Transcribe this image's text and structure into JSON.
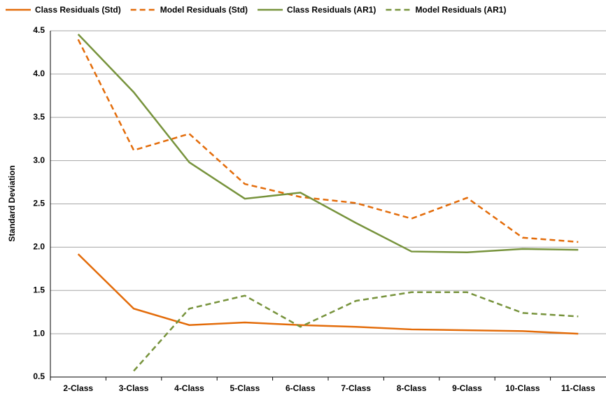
{
  "chart_data": {
    "type": "line",
    "y_label": "Standard Deviation",
    "categories": [
      "2-Class",
      "3-Class",
      "4-Class",
      "5-Class",
      "6-Class",
      "7-Class",
      "8-Class",
      "9-Class",
      "10-Class",
      "11-Class"
    ],
    "series": [
      {
        "name": "Class Residuals (Std)",
        "color": "#e36c0a",
        "dash": false,
        "values": [
          1.92,
          1.29,
          1.1,
          1.13,
          1.1,
          1.08,
          1.05,
          1.04,
          1.03,
          1.0
        ]
      },
      {
        "name": "Model Residuals (Std)",
        "color": "#e36c0a",
        "dash": true,
        "values": [
          4.4,
          3.12,
          3.31,
          2.73,
          2.58,
          2.51,
          2.33,
          2.57,
          2.11,
          2.06
        ]
      },
      {
        "name": "Class Residuals (AR1)",
        "color": "#77933c",
        "dash": false,
        "values": [
          4.46,
          3.79,
          2.98,
          2.56,
          2.63,
          2.28,
          1.95,
          1.94,
          1.98,
          1.97
        ]
      },
      {
        "name": "Model Residuals (AR1)",
        "color": "#77933c",
        "dash": true,
        "values": [
          null,
          0.57,
          1.29,
          1.44,
          1.08,
          1.38,
          1.48,
          1.48,
          1.24,
          1.2
        ]
      }
    ],
    "ylim": [
      0.5,
      4.5
    ],
    "yticks": [
      0.5,
      {
        "value": 1,
        "label": "1.0"
      },
      1.5,
      {
        "value": 2,
        "label": "2.0"
      },
      2.5,
      {
        "value": 3,
        "label": "3.0"
      },
      3.5,
      {
        "value": 4,
        "label": "4.0"
      },
      4.5
    ],
    "grid": true
  }
}
